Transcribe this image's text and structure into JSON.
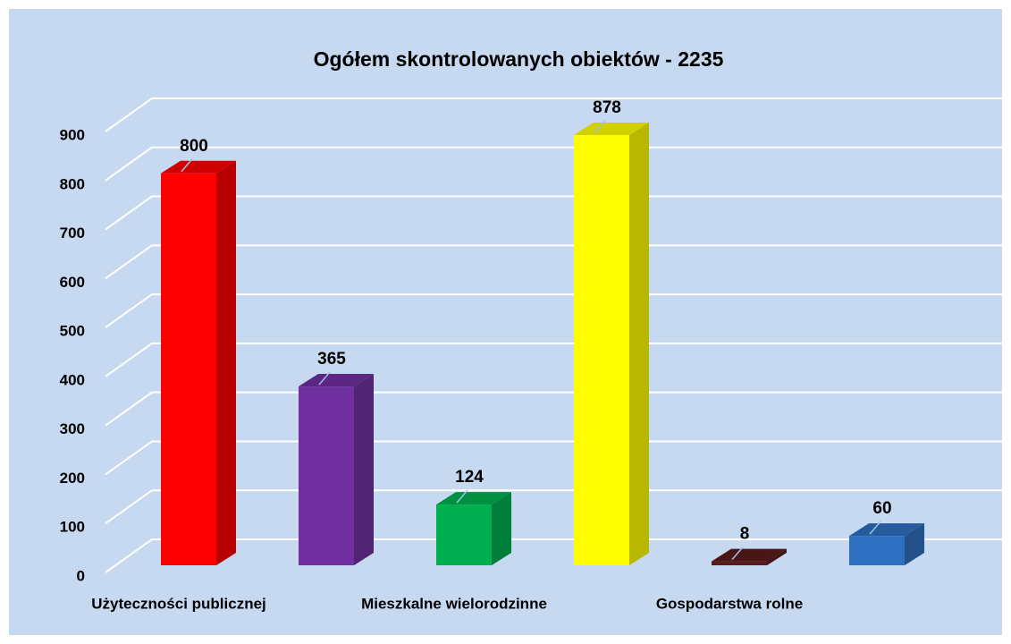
{
  "chart_data": {
    "type": "bar3d",
    "title": "Ogółem skontrolowanych obiektów -  2235",
    "categories": [
      "Użyteczności publicznej",
      null,
      "Mieszkalne wielorodzinne",
      null,
      "Gospodarstwa rolne",
      null
    ],
    "values": [
      800,
      365,
      124,
      878,
      8,
      60
    ],
    "colors": [
      "#ff0000",
      "#7030a0",
      "#00b050",
      "#ffff00",
      "#5a1a1a",
      "#2e6fc0"
    ],
    "ylim": [
      0,
      900
    ],
    "yticks": [
      0,
      100,
      200,
      300,
      400,
      500,
      600,
      700,
      800,
      900
    ],
    "grid": true
  }
}
